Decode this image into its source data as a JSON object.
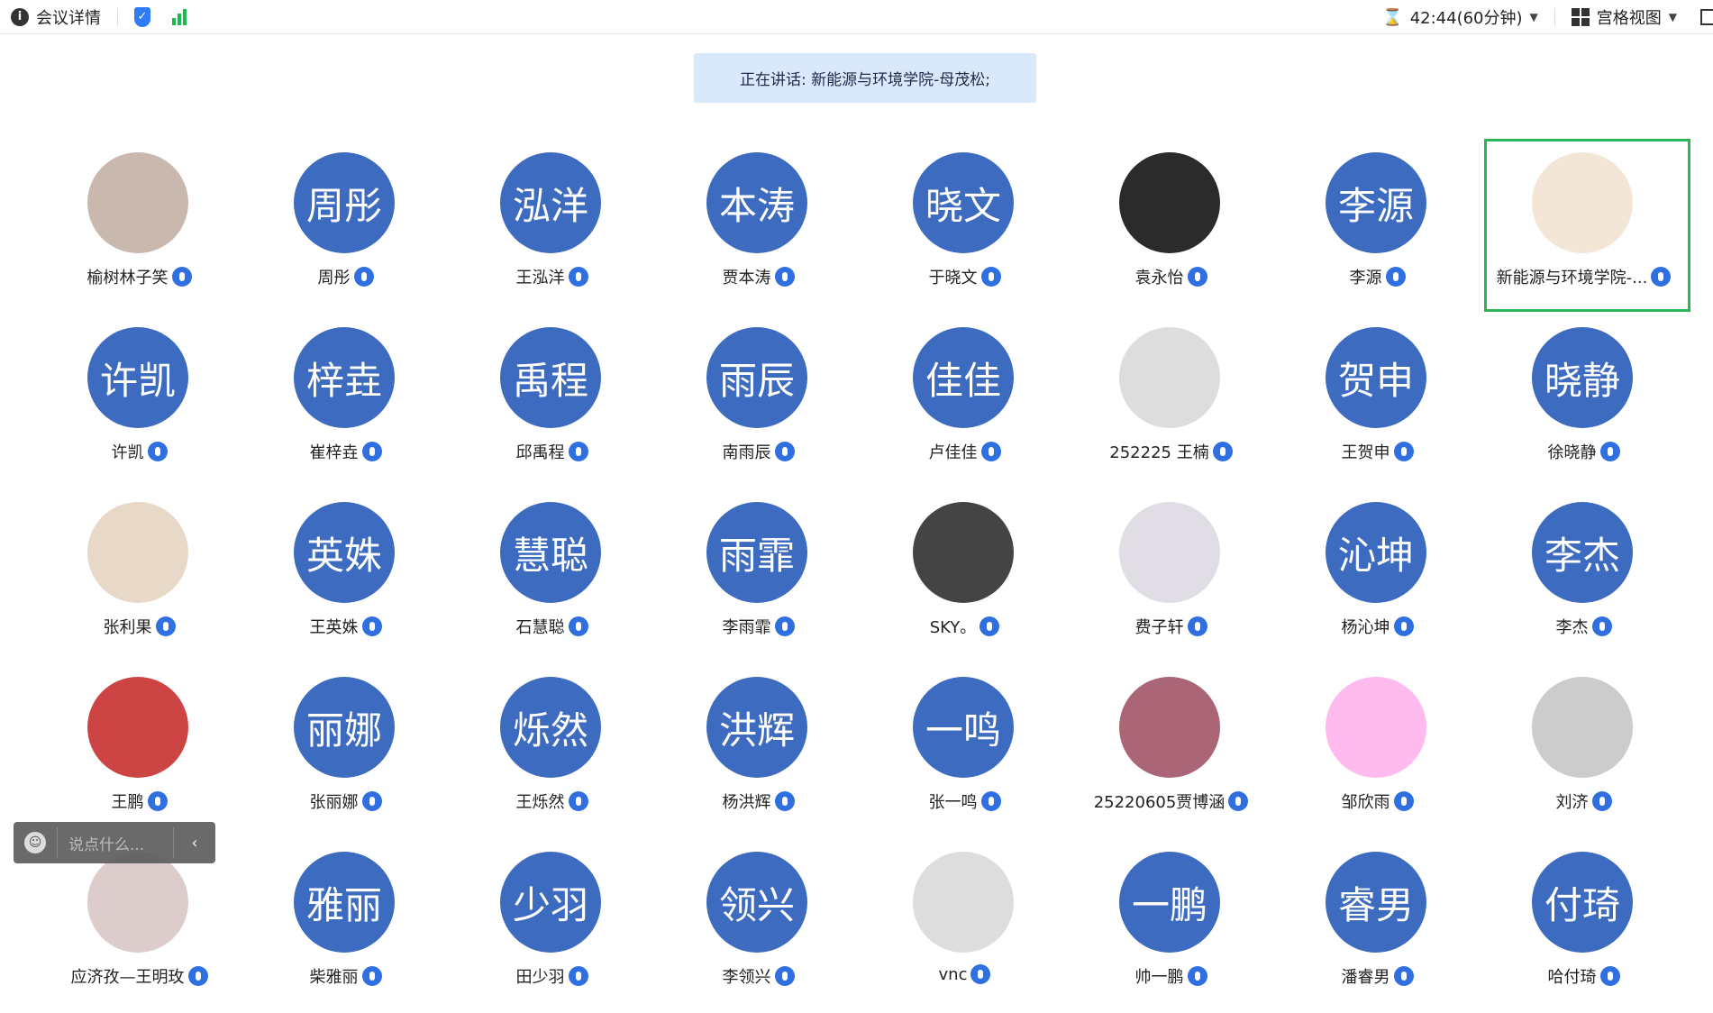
{
  "topbar": {
    "meeting_info": "会议详情",
    "timer": "42:44(60分钟)",
    "view_mode": "宫格视图"
  },
  "banner": {
    "speaking": "正在讲话: 新能源与环境学院-母茂松;"
  },
  "chat": {
    "placeholder": "说点什么..."
  },
  "colors": {
    "avatar_blue": "#3d6bbf",
    "highlight_green": "#2ab55a",
    "banner_bg": "#dae8fc"
  },
  "participants": [
    {
      "avatar": "",
      "photo": true,
      "name": "榆树林子笑"
    },
    {
      "avatar": "周彤",
      "name": "周彤"
    },
    {
      "avatar": "泓洋",
      "name": "王泓洋"
    },
    {
      "avatar": "本涛",
      "name": "贾本涛"
    },
    {
      "avatar": "晓文",
      "name": "于晓文"
    },
    {
      "avatar": "",
      "photo": true,
      "name": "袁永怡"
    },
    {
      "avatar": "李源",
      "name": "李源"
    },
    {
      "avatar": "",
      "photo": true,
      "name": "新能源与环境学院-...",
      "active": true
    },
    {
      "avatar": "许凯",
      "name": "许凯"
    },
    {
      "avatar": "梓垚",
      "name": "崔梓垚"
    },
    {
      "avatar": "禹程",
      "name": "邱禹程"
    },
    {
      "avatar": "雨辰",
      "name": "南雨辰"
    },
    {
      "avatar": "佳佳",
      "name": "卢佳佳"
    },
    {
      "avatar": "",
      "photo": true,
      "name": "252225 王楠"
    },
    {
      "avatar": "贺申",
      "name": "王贺申"
    },
    {
      "avatar": "晓静",
      "name": "徐晓静"
    },
    {
      "avatar": "",
      "photo": true,
      "name": "张利果"
    },
    {
      "avatar": "英姝",
      "name": "王英姝"
    },
    {
      "avatar": "慧聪",
      "name": "石慧聪"
    },
    {
      "avatar": "雨霏",
      "name": "李雨霏"
    },
    {
      "avatar": "",
      "photo": true,
      "name": "SKY。"
    },
    {
      "avatar": "",
      "photo": true,
      "name": "费子轩"
    },
    {
      "avatar": "沁坤",
      "name": "杨沁坤"
    },
    {
      "avatar": "李杰",
      "name": "李杰"
    },
    {
      "avatar": "",
      "photo": true,
      "name": "王鹏"
    },
    {
      "avatar": "丽娜",
      "name": "张丽娜"
    },
    {
      "avatar": "烁然",
      "name": "王烁然"
    },
    {
      "avatar": "洪辉",
      "name": "杨洪辉"
    },
    {
      "avatar": "一鸣",
      "name": "张一鸣"
    },
    {
      "avatar": "",
      "photo": true,
      "name": "25220605贾博涵"
    },
    {
      "avatar": "",
      "photo": true,
      "name": "邹欣雨"
    },
    {
      "avatar": "",
      "photo": true,
      "name": "刘济"
    },
    {
      "avatar": "",
      "photo": true,
      "name": "应济孜—王明玫"
    },
    {
      "avatar": "雅丽",
      "name": "柴雅丽"
    },
    {
      "avatar": "少羽",
      "name": "田少羽"
    },
    {
      "avatar": "领兴",
      "name": "李领兴"
    },
    {
      "avatar": "",
      "photo": true,
      "name": "vnc"
    },
    {
      "avatar": "一鹏",
      "name": "帅一鹏"
    },
    {
      "avatar": "睿男",
      "name": "潘睿男"
    },
    {
      "avatar": "付琦",
      "name": "哈付琦"
    }
  ]
}
